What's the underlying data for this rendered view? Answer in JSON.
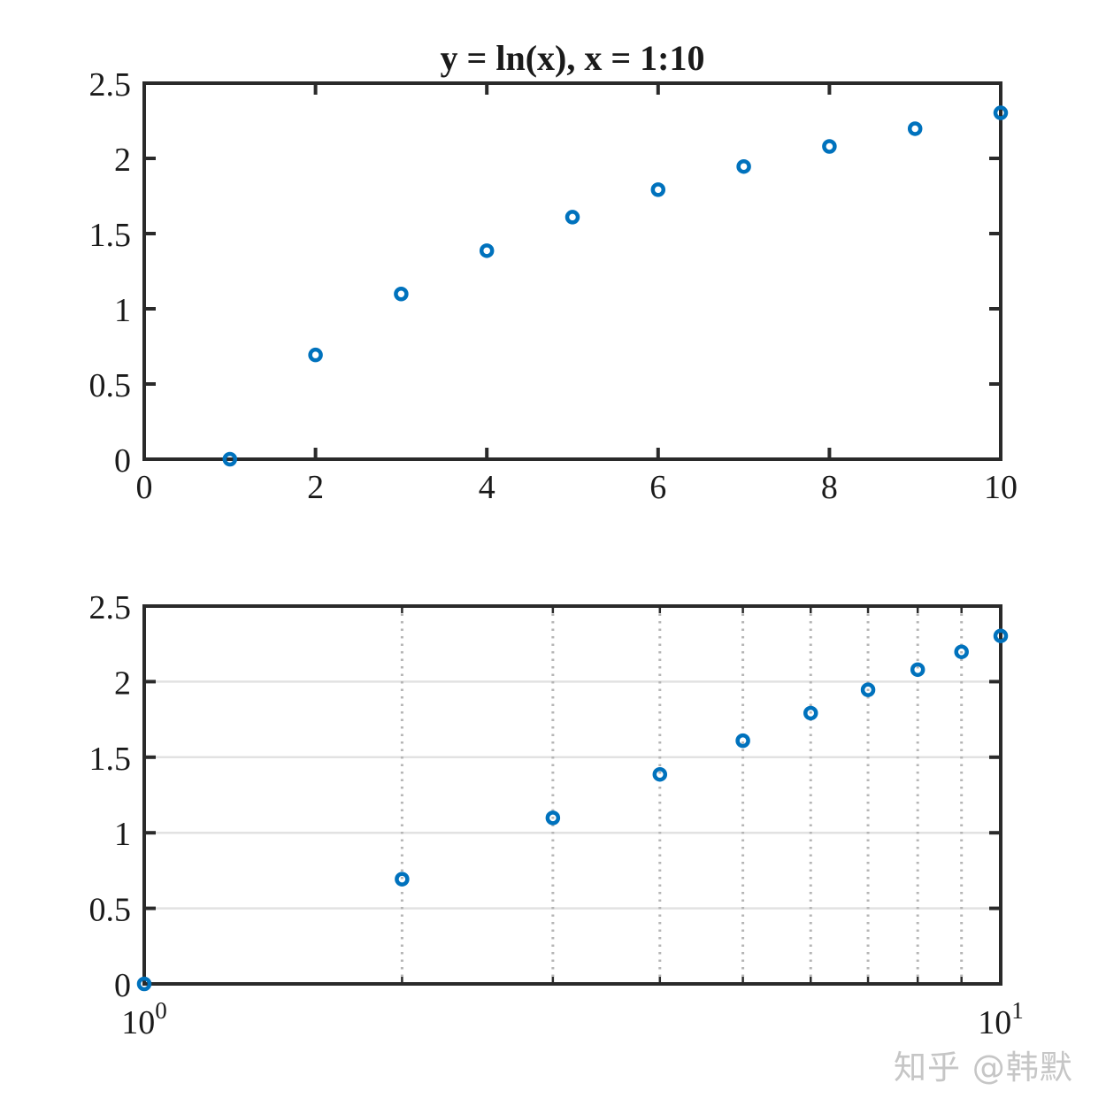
{
  "figure": {
    "background": "#ffffff",
    "axis_color": "#2a2a2a",
    "label_color": "#1a1a1a",
    "grid_color": "#e2e2e2",
    "minor_grid_color": "#b5b5b5"
  },
  "watermark": {
    "text": "知乎 @韩默",
    "color": "#c6c6c6"
  },
  "chart_data": [
    {
      "type": "scatter",
      "title": "y = ln(x), x = 1:10",
      "xscale": "linear",
      "xlim": [
        0,
        10
      ],
      "ylim": [
        0,
        2.5
      ],
      "xticks": [
        0,
        2,
        4,
        6,
        8,
        10
      ],
      "xtick_labels": [
        "0",
        "2",
        "4",
        "6",
        "8",
        "10"
      ],
      "yticks": [
        0,
        0.5,
        1,
        1.5,
        2,
        2.5
      ],
      "ytick_labels": [
        "0",
        "0.5",
        "1",
        "1.5",
        "2",
        "2.5"
      ],
      "grid": false,
      "minor_grid": false,
      "x": [
        1,
        2,
        3,
        4,
        5,
        6,
        7,
        8,
        9,
        10
      ],
      "y": [
        0,
        0.6931,
        1.0986,
        1.3863,
        1.6094,
        1.7918,
        1.9459,
        2.0794,
        2.1972,
        2.3026
      ],
      "marker": "circle",
      "marker_color": "#0072BD",
      "legend": null
    },
    {
      "type": "scatter",
      "title": "",
      "xscale": "log",
      "xlim": [
        1,
        10
      ],
      "ylim": [
        0,
        2.5
      ],
      "xticks": [
        1,
        10
      ],
      "xtick_labels": [
        "10^0",
        "10^1"
      ],
      "minor_xticks": [
        2,
        3,
        4,
        5,
        6,
        7,
        8,
        9
      ],
      "yticks": [
        0,
        0.5,
        1,
        1.5,
        2,
        2.5
      ],
      "ytick_labels": [
        "0",
        "0.5",
        "1",
        "1.5",
        "2",
        "2.5"
      ],
      "grid": true,
      "minor_grid": true,
      "x": [
        1,
        2,
        3,
        4,
        5,
        6,
        7,
        8,
        9,
        10
      ],
      "y": [
        0,
        0.6931,
        1.0986,
        1.3863,
        1.6094,
        1.7918,
        1.9459,
        2.0794,
        2.1972,
        2.3026
      ],
      "marker": "circle",
      "marker_color": "#0072BD",
      "legend": null
    }
  ]
}
